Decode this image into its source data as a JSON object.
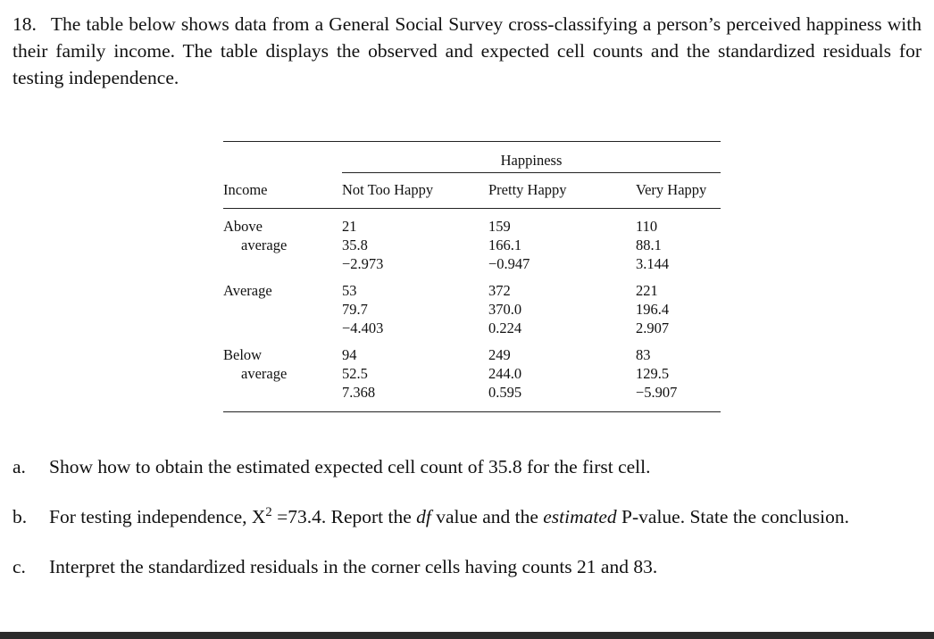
{
  "problem": {
    "number": "18.",
    "text": "The table below shows data from a General Social Survey cross-classifying a person’s perceived happiness with their family income. The table displays the observed and expected cell counts and the standardized residuals for testing independence."
  },
  "table": {
    "spanner": "Happiness",
    "columns": [
      "Income",
      "Not Too Happy",
      "Pretty Happy",
      "Very Happy"
    ],
    "rows": [
      {
        "income_line1": "Above",
        "income_line2": "average",
        "cells": [
          {
            "observed": "21",
            "expected": "35.8",
            "residual": "−2.973"
          },
          {
            "observed": "159",
            "expected": "166.1",
            "residual": "−0.947"
          },
          {
            "observed": "110",
            "expected": "88.1",
            "residual": "3.144"
          }
        ]
      },
      {
        "income_line1": "Average",
        "income_line2": "",
        "cells": [
          {
            "observed": "53",
            "expected": "79.7",
            "residual": "−4.403"
          },
          {
            "observed": "372",
            "expected": "370.0",
            "residual": "0.224"
          },
          {
            "observed": "221",
            "expected": "196.4",
            "residual": "2.907"
          }
        ]
      },
      {
        "income_line1": "Below",
        "income_line2": "average",
        "cells": [
          {
            "observed": "94",
            "expected": "52.5",
            "residual": "7.368"
          },
          {
            "observed": "249",
            "expected": "244.0",
            "residual": "0.595"
          },
          {
            "observed": "83",
            "expected": "129.5",
            "residual": "−5.907"
          }
        ]
      }
    ]
  },
  "questions": {
    "a": {
      "label": "a.",
      "text": "Show how to obtain the estimated expected cell count of 35.8 for the first cell."
    },
    "b": {
      "label": "b.",
      "part1": "For testing independence, X",
      "sup": "2",
      "part2": " =73.4. Report the ",
      "italic1": "df",
      "part3": " value and the ",
      "italic2": "estimated",
      "part4": " P-value. State the conclusion."
    },
    "c": {
      "label": "c.",
      "text": "Interpret the standardized residuals in the corner cells having counts 21 and 83."
    }
  }
}
